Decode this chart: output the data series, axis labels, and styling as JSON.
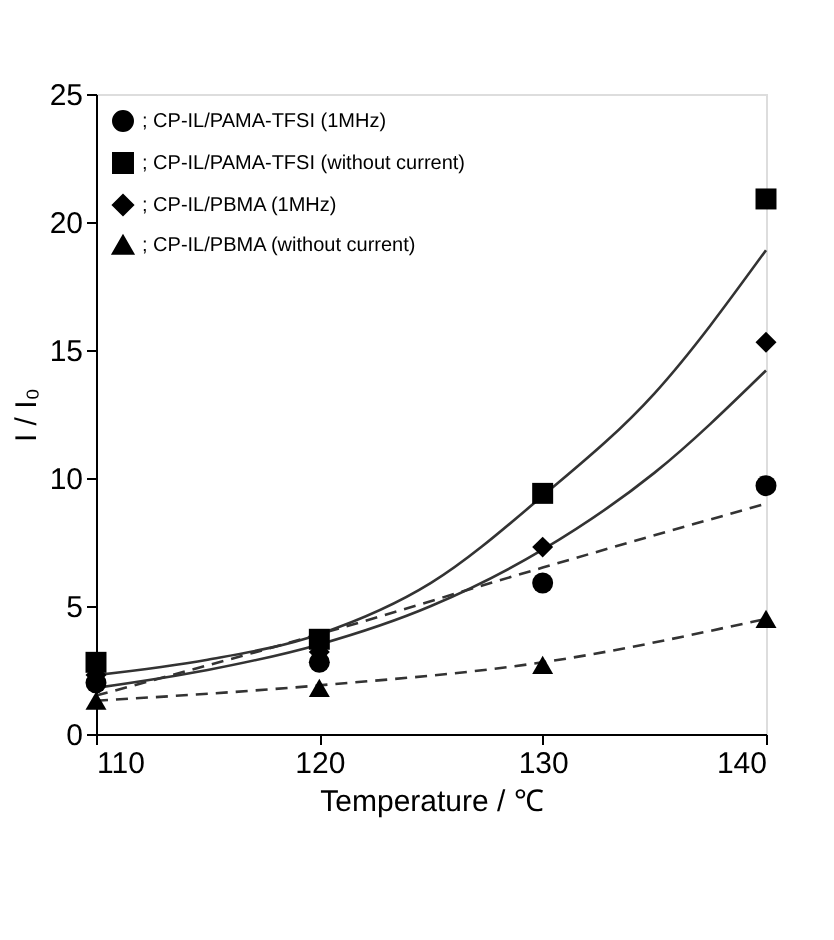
{
  "chart_data": {
    "type": "scatter",
    "xlabel": "Temperature / ℃",
    "ylabel": "I / I₀",
    "x": [
      110,
      120,
      130,
      140
    ],
    "xlim": [
      110,
      140
    ],
    "xticks": [
      110,
      120,
      130,
      140
    ],
    "ylim": [
      0,
      25
    ],
    "yticks": [
      0,
      5,
      10,
      15,
      20,
      25
    ],
    "grid": false,
    "legend": "top left",
    "series": [
      {
        "name": "; CP-IL/PAMA-TFSI (1MHz)",
        "marker": "circle",
        "color": "#000000",
        "values": [
          2.0,
          2.8,
          5.9,
          9.7
        ]
      },
      {
        "name": "; CP-IL/PAMA-TFSI (without current)",
        "marker": "square",
        "color": "#000000",
        "values": [
          2.8,
          3.7,
          9.4,
          20.9
        ]
      },
      {
        "name": "; CP-IL/PBMA (1MHz)",
        "marker": "diamond",
        "color": "#000000",
        "values": [
          2.3,
          3.2,
          7.3,
          15.3
        ]
      },
      {
        "name": "; CP-IL/PBMA (without current)",
        "marker": "triangle",
        "color": "#000000",
        "values": [
          1.3,
          1.8,
          2.7,
          4.5
        ]
      },
      {
        "type": "line",
        "line_style": "solid",
        "color": "#333333",
        "x": [
          110,
          115,
          120,
          125,
          130,
          135,
          140
        ],
        "values": [
          2.3,
          2.9,
          3.9,
          5.9,
          9.3,
          13.3,
          18.9
        ]
      },
      {
        "type": "line",
        "line_style": "solid",
        "color": "#333333",
        "x": [
          110,
          115,
          120,
          125,
          130,
          135,
          140
        ],
        "values": [
          1.8,
          2.5,
          3.5,
          5.0,
          7.2,
          10.2,
          14.2
        ]
      },
      {
        "type": "line",
        "line_style": "dashed",
        "color": "#333333",
        "x": [
          110,
          120,
          130,
          140
        ],
        "values": [
          1.5,
          3.9,
          6.5,
          9.0
        ]
      },
      {
        "type": "line",
        "line_style": "dashed",
        "color": "#333333",
        "x": [
          110,
          120,
          130,
          140
        ],
        "values": [
          1.3,
          1.9,
          2.8,
          4.5
        ]
      }
    ]
  }
}
